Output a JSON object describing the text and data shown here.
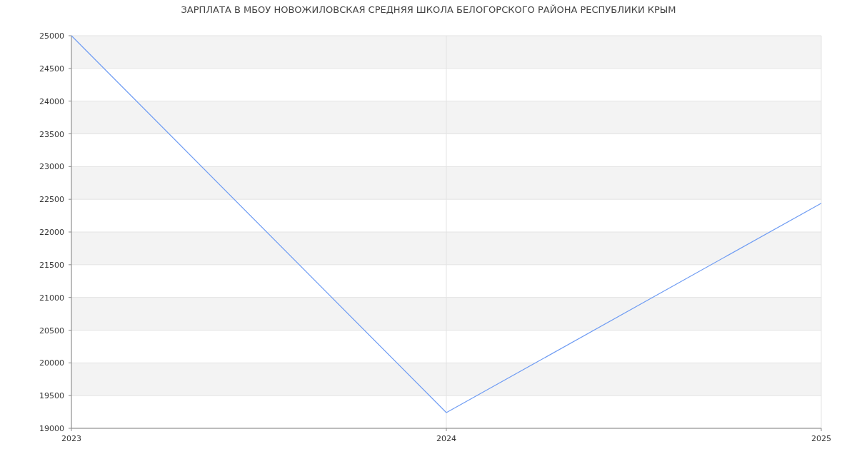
{
  "chart_data": {
    "type": "line",
    "title": "ЗАРПЛАТА В МБОУ НОВОЖИЛОВСКАЯ СРЕДНЯЯ ШКОЛА БЕЛОГОРСКОГО РАЙОНА РЕСПУБЛИКИ КРЫМ",
    "x": [
      2023,
      2024,
      2025
    ],
    "series": [
      {
        "color": "#6f9cf3",
        "values": [
          25000,
          19240,
          22440
        ]
      }
    ],
    "xlim": [
      2023,
      2025
    ],
    "xticks": [
      2023,
      2024,
      2025
    ],
    "ylim": [
      19000,
      25000
    ],
    "yticks": [
      19000,
      19500,
      20000,
      20500,
      21000,
      21500,
      22000,
      22500,
      23000,
      23500,
      24000,
      24500,
      25000
    ],
    "grid": true,
    "marker": "none",
    "line_style": "solid"
  }
}
